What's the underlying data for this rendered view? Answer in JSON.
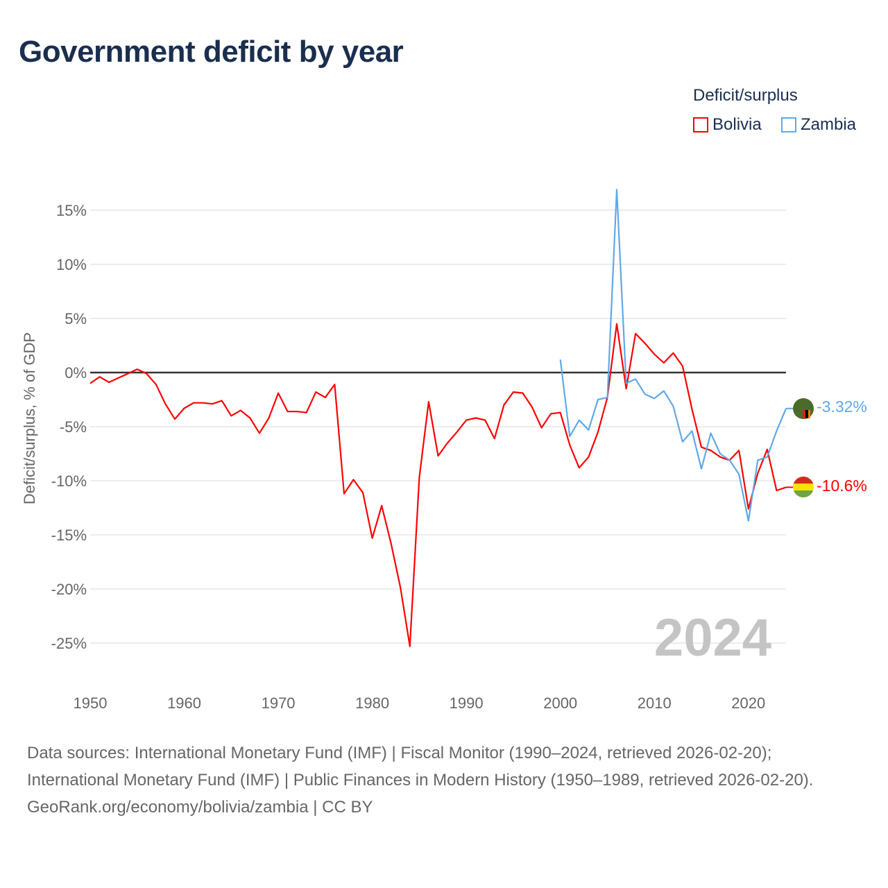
{
  "chart_data": {
    "type": "line",
    "title": "Government deficit by year",
    "ylabel": "Deficit/surplus, % of GDP",
    "xlabel": "",
    "legend_title": "Deficit/surplus",
    "legend_placement": "top-right",
    "xlim": [
      1950,
      2024
    ],
    "ylim": [
      -27,
      18
    ],
    "x_ticks": [
      1950,
      1960,
      1970,
      1980,
      1990,
      2000,
      2010,
      2020
    ],
    "y_ticks": [
      15,
      10,
      5,
      0,
      -5,
      -10,
      -15,
      -20,
      -25
    ],
    "y_tick_labels": [
      "15%",
      "10%",
      "5%",
      "0%",
      "-5%",
      "-10%",
      "-15%",
      "-20%",
      "-25%"
    ],
    "grid": true,
    "year_watermark": "2024",
    "series": [
      {
        "name": "Bolivia",
        "color": "#ff0000",
        "end_label": "-10.6%",
        "start_year": 1950,
        "values": [
          -1.0,
          -0.4,
          -0.9,
          -0.5,
          -0.1,
          0.3,
          -0.1,
          -1.1,
          -2.9,
          -4.3,
          -3.3,
          -2.8,
          -2.8,
          -2.9,
          -2.6,
          -4.0,
          -3.5,
          -4.2,
          -5.6,
          -4.2,
          -1.9,
          -3.6,
          -3.6,
          -3.7,
          -1.8,
          -2.3,
          -1.1,
          -11.2,
          -9.9,
          -11.1,
          -15.3,
          -12.3,
          -15.8,
          -19.9,
          -25.3,
          -9.7,
          -2.7,
          -7.7,
          -6.5,
          -5.5,
          -4.4,
          -4.2,
          -4.4,
          -6.1,
          -3.0,
          -1.8,
          -1.9,
          -3.2,
          -5.1,
          -3.8,
          -3.7,
          -6.7,
          -8.8,
          -7.8,
          -5.5,
          -2.3,
          4.5,
          -1.5,
          3.6,
          2.7,
          1.7,
          0.9,
          1.8,
          0.6,
          -3.4,
          -6.9,
          -7.2,
          -7.8,
          -8.1,
          -7.2,
          -12.6,
          -9.3,
          -7.1,
          -10.9,
          -10.6
        ]
      },
      {
        "name": "Zambia",
        "color": "#5fa8ea",
        "end_label": "-3.32%",
        "start_year": 2000,
        "values": [
          1.2,
          -5.9,
          -4.4,
          -5.3,
          -2.5,
          -2.3,
          16.9,
          -1.0,
          -0.6,
          -2.0,
          -2.4,
          -1.7,
          -3.1,
          -6.4,
          -5.4,
          -8.9,
          -5.6,
          -7.5,
          -8.1,
          -9.4,
          -13.7,
          -8.1,
          -7.8,
          -5.4,
          -3.32
        ]
      }
    ]
  },
  "footer": {
    "sources": "Data sources: International Monetary Fund (IMF) | Fiscal Monitor (1990–2024, retrieved 2026-02-20); International Monetary Fund (IMF) | Public Finances in Modern History (1950–1989, retrieved 2026-02-20).",
    "credit": "GeoRank.org/economy/bolivia/zambia | CC BY"
  }
}
